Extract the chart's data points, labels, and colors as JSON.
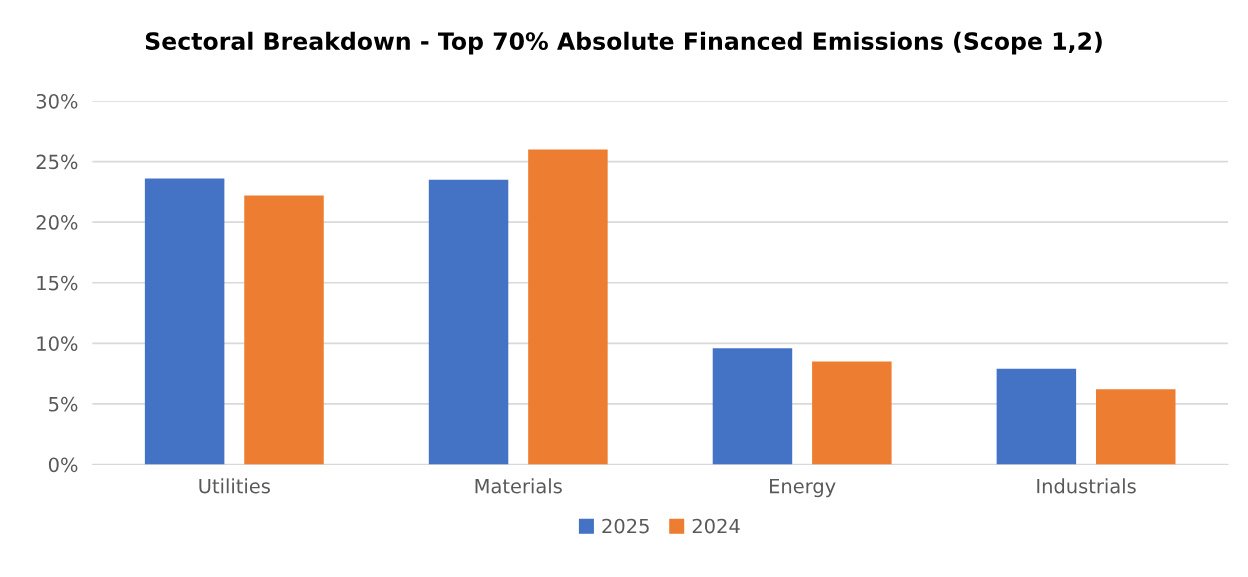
{
  "chart_data": {
    "type": "bar",
    "title": "Sectoral Breakdown - Top 70% Absolute Financed Emissions (Scope 1,2)",
    "categories": [
      "Utilities",
      "Materials",
      "Energy",
      "Industrials"
    ],
    "series": [
      {
        "name": "2025",
        "color": "#4472c4",
        "values": [
          23.6,
          23.5,
          9.6,
          7.9
        ]
      },
      {
        "name": "2024",
        "color": "#ed7d31",
        "values": [
          22.2,
          26.0,
          8.5,
          6.2
        ]
      }
    ],
    "ylim": [
      0,
      30
    ],
    "yticks": [
      {
        "value": 0,
        "label": "0%"
      },
      {
        "value": 5,
        "label": "5%"
      },
      {
        "value": 10,
        "label": "10%"
      },
      {
        "value": 15,
        "label": "15%"
      },
      {
        "value": 20,
        "label": "20%"
      },
      {
        "value": 25,
        "label": "25%"
      },
      {
        "value": 30,
        "label": "30%"
      }
    ],
    "grid": "y",
    "legend": "bottom"
  }
}
